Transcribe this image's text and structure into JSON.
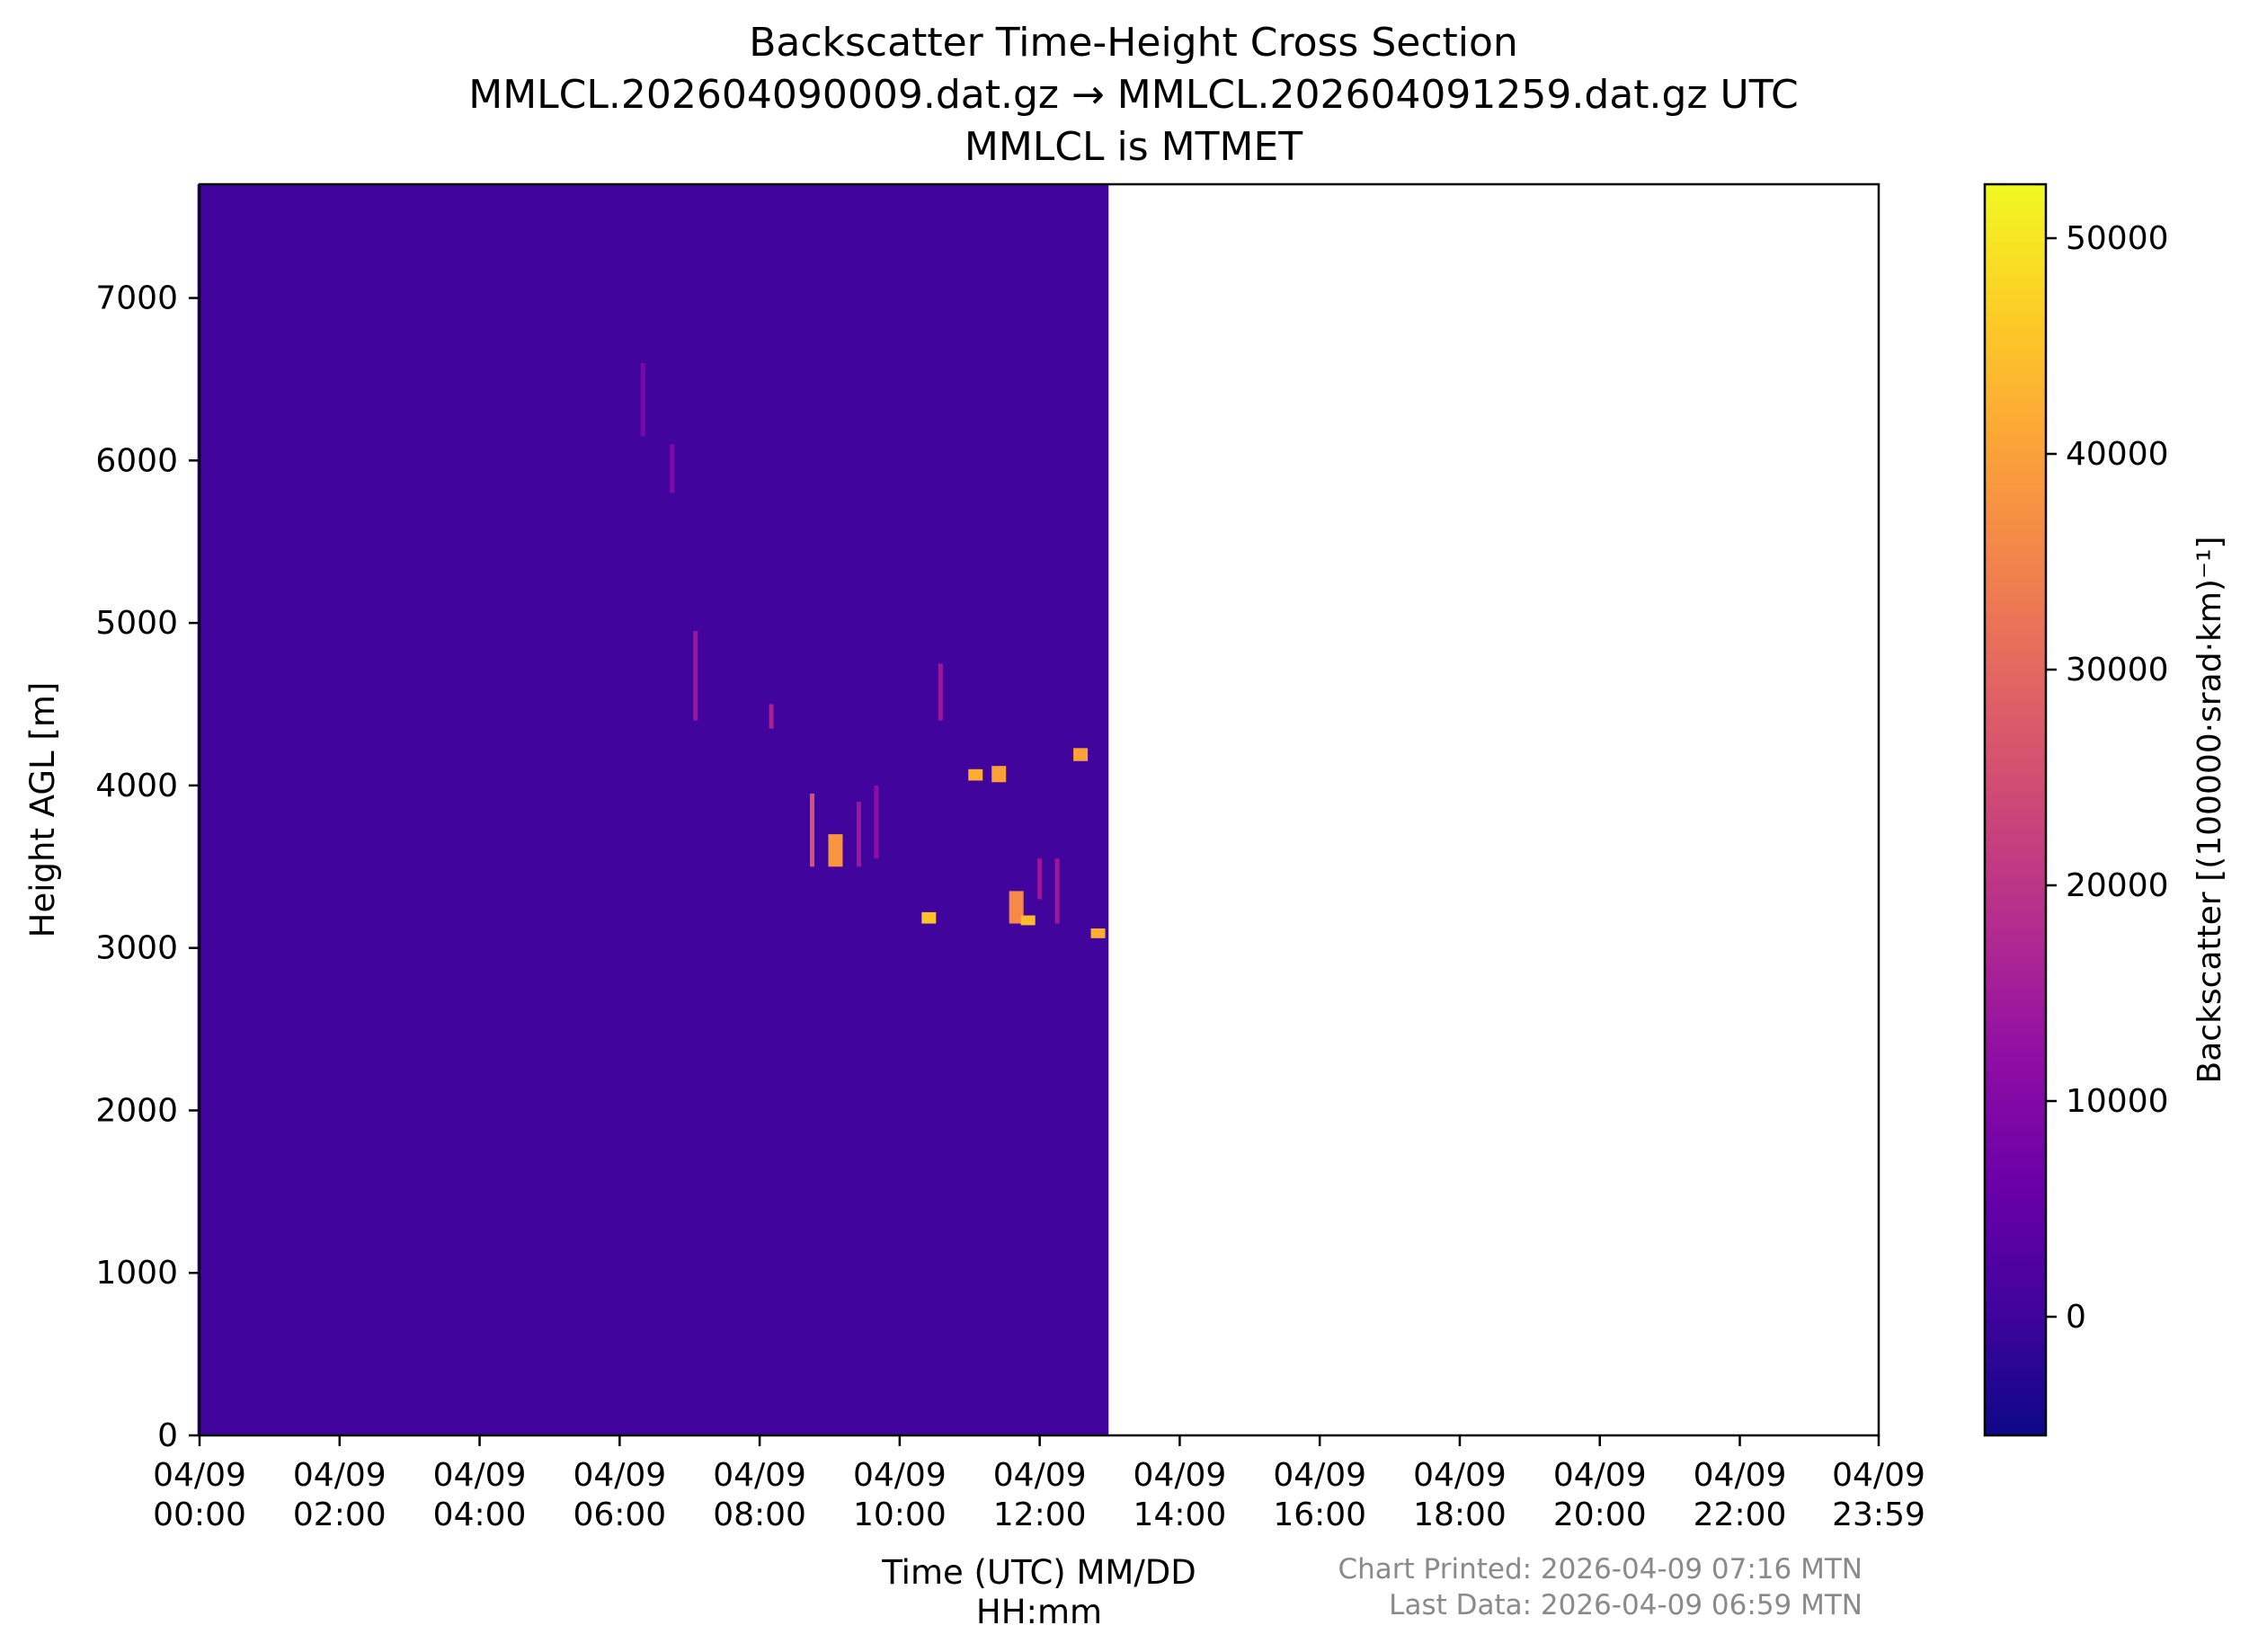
{
  "title": {
    "line1": "Backscatter Time-Height Cross Section",
    "line2": "MMLCL.202604090009.dat.gz → MMLCL.202604091259.dat.gz UTC",
    "line3": "MMLCL is MTMET"
  },
  "footer": {
    "printed": "Chart Printed: 2026-04-09 07:16 MTN",
    "last_data": "Last Data: 2026-04-09 06:59 MTN"
  },
  "chart_data": {
    "type": "heatmap",
    "xlabel_line1": "Time (UTC) MM/DD",
    "xlabel_line2": "HH:mm",
    "ylabel": "Height AGL [m]",
    "xlim": [
      "2026-04-09T00:00",
      "2026-04-09T23:59"
    ],
    "ylim": [
      0,
      7700
    ],
    "data_extent_x": [
      "2026-04-09T00:09",
      "2026-04-09T12:59"
    ],
    "x_ticks": [
      {
        "date": "04/09",
        "time": "00:00"
      },
      {
        "date": "04/09",
        "time": "02:00"
      },
      {
        "date": "04/09",
        "time": "04:00"
      },
      {
        "date": "04/09",
        "time": "06:00"
      },
      {
        "date": "04/09",
        "time": "08:00"
      },
      {
        "date": "04/09",
        "time": "10:00"
      },
      {
        "date": "04/09",
        "time": "12:00"
      },
      {
        "date": "04/09",
        "time": "14:00"
      },
      {
        "date": "04/09",
        "time": "16:00"
      },
      {
        "date": "04/09",
        "time": "18:00"
      },
      {
        "date": "04/09",
        "time": "20:00"
      },
      {
        "date": "04/09",
        "time": "22:00"
      },
      {
        "date": "04/09",
        "time": "23:59"
      }
    ],
    "y_ticks": [
      0,
      1000,
      2000,
      3000,
      4000,
      5000,
      6000,
      7000
    ],
    "background_color": "#41049d",
    "colorbar": {
      "label": "Backscatter [(100000·srad·km)⁻¹]",
      "colormap": "plasma",
      "range": [
        -5500,
        52500
      ],
      "ticks": [
        0,
        10000,
        20000,
        30000,
        40000,
        50000
      ],
      "colors": [
        "#0d0887",
        "#41049d",
        "#6a00a8",
        "#8f0da4",
        "#b12a90",
        "#cc4778",
        "#e16462",
        "#f2844b",
        "#fca636",
        "#fcce25",
        "#f0f921"
      ]
    },
    "features": [
      {
        "time": "06:20",
        "h0": 6150,
        "h1": 6600,
        "value": 9000
      },
      {
        "time": "06:45",
        "h0": 5800,
        "h1": 6100,
        "value": 10000
      },
      {
        "time": "07:05",
        "h0": 4400,
        "h1": 4950,
        "value": 14000
      },
      {
        "time": "08:10",
        "h0": 4350,
        "h1": 4500,
        "value": 16000
      },
      {
        "time": "08:45",
        "h0": 3500,
        "h1": 3950,
        "value": 26000
      },
      {
        "time": "09:05",
        "h0": 3500,
        "h1": 3700,
        "value": 38000
      },
      {
        "time": "09:25",
        "h0": 3500,
        "h1": 3900,
        "value": 14000
      },
      {
        "time": "09:40",
        "h0": 3550,
        "h1": 4000,
        "value": 12000
      },
      {
        "time": "10:25",
        "h0": 3150,
        "h1": 3220,
        "value": 45000
      },
      {
        "time": "10:35",
        "h0": 4400,
        "h1": 4750,
        "value": 14000
      },
      {
        "time": "11:05",
        "h0": 4030,
        "h1": 4100,
        "value": 42000
      },
      {
        "time": "11:25",
        "h0": 4020,
        "h1": 4120,
        "value": 40000
      },
      {
        "time": "11:40",
        "h0": 3150,
        "h1": 3350,
        "value": 36000
      },
      {
        "time": "11:50",
        "h0": 3140,
        "h1": 3200,
        "value": 44000
      },
      {
        "time": "12:00",
        "h0": 3300,
        "h1": 3550,
        "value": 14000
      },
      {
        "time": "12:15",
        "h0": 3150,
        "h1": 3550,
        "value": 14000
      },
      {
        "time": "12:35",
        "h0": 4150,
        "h1": 4230,
        "value": 40000
      },
      {
        "time": "12:50",
        "h0": 3060,
        "h1": 3120,
        "value": 42000
      }
    ]
  }
}
